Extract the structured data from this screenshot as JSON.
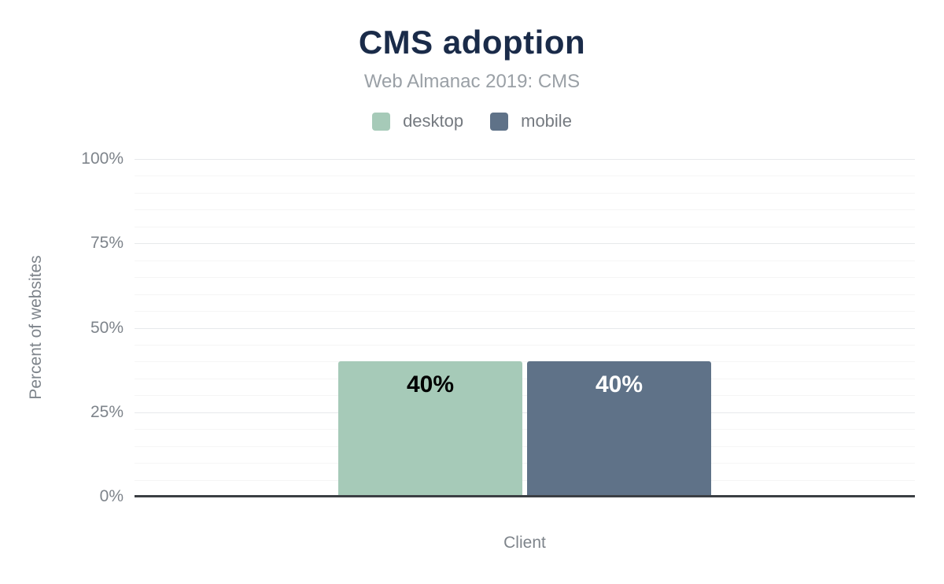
{
  "figure": {
    "background": "#ffffff",
    "title_color": "#1a2b49",
    "subtitle_color": "#9aa0a6",
    "axis_text_color": "#7e848b",
    "axis_line_color": "#3b3f44",
    "major_grid_color": "#e7e9eb",
    "minor_grid_color": "#f5f5f5"
  },
  "chart_data": {
    "type": "bar",
    "title": "CMS adoption",
    "subtitle": "Web Almanac 2019: CMS",
    "xlabel": "Client",
    "ylabel": "Percent of websites",
    "ylim": [
      0,
      100
    ],
    "yticks": [
      0,
      25,
      50,
      75,
      100
    ],
    "yticklabels": [
      "0%",
      "25%",
      "50%",
      "75%",
      "100%"
    ],
    "minor_tick_step": 5,
    "grid": true,
    "legend_position": "top",
    "categories": [
      "Client"
    ],
    "series": [
      {
        "name": "desktop",
        "values": [
          40
        ],
        "data_label": "40%",
        "color": "#a6cab8",
        "label_color": "#000000"
      },
      {
        "name": "mobile",
        "values": [
          40
        ],
        "data_label": "40%",
        "color": "#5f7288",
        "label_color": "#ffffff"
      }
    ]
  }
}
